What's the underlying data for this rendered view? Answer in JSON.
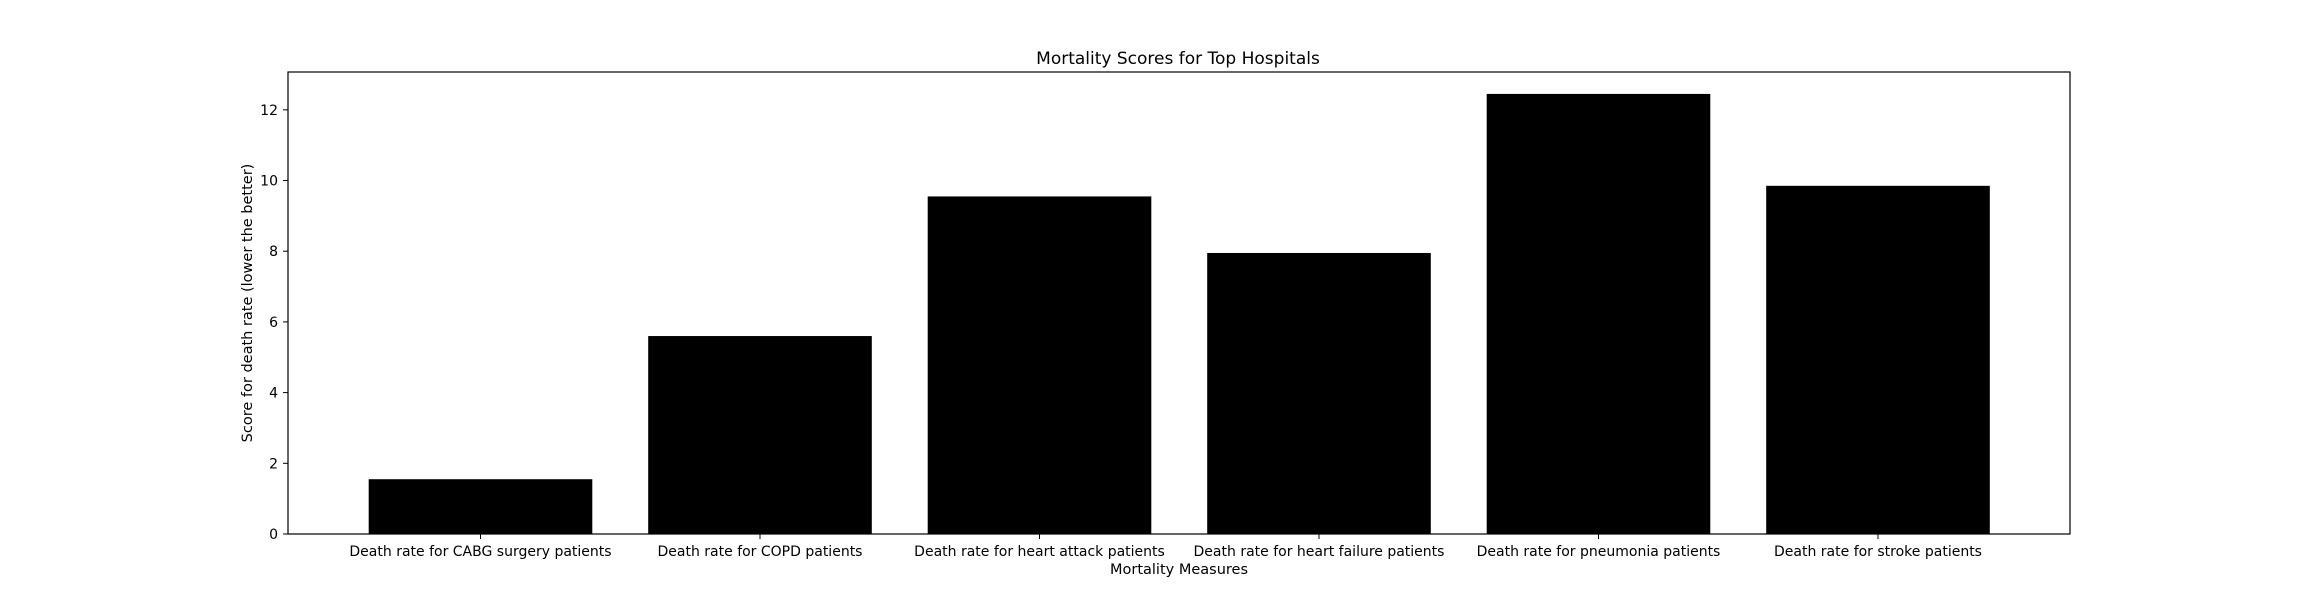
{
  "chart_data": {
    "type": "bar",
    "title": "Mortality Scores for Top Hospitals",
    "xlabel": "Mortality Measures",
    "ylabel": "Score for death rate (lower the better)",
    "categories": [
      "Death rate for CABG surgery patients",
      "Death rate for COPD patients",
      "Death rate for heart attack patients",
      "Death rate for heart failure patients",
      "Death rate for pneumonia patients",
      "Death rate for stroke patients"
    ],
    "values": [
      1.55,
      5.6,
      9.55,
      7.95,
      12.45,
      9.85
    ],
    "ylim": [
      0,
      13.07
    ],
    "yticks": [
      0,
      2,
      4,
      6,
      8,
      10,
      12
    ],
    "bar_color": "#000000",
    "grid": false,
    "legend": "none"
  }
}
